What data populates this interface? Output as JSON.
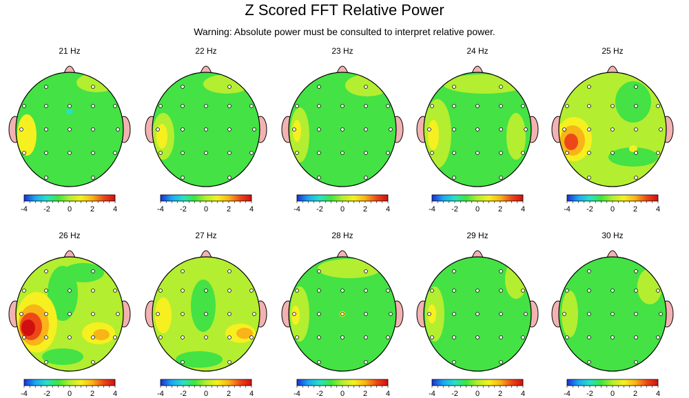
{
  "title": "Z Scored FFT Relative Power",
  "subtitle": "Warning:  Absolute power must be consulted to interpret relative power.",
  "chart_data": {
    "type": "heatmap",
    "description_units": "z-score",
    "color_scale": {
      "range": [
        -4,
        4
      ],
      "ticks": [
        "-4",
        "-2",
        "0",
        "2",
        "4"
      ],
      "colors": [
        "#1a2fd8",
        "#1ca9f0",
        "#28e0c8",
        "#3ee63e",
        "#b4ee30",
        "#f6f020",
        "#f8b418",
        "#ee4818",
        "#d01010"
      ]
    },
    "colors": {
      "background": "#44e244",
      "outline": "#000000",
      "ear_fill": "#f3b2b2",
      "electrode_fill": "#ffffff"
    },
    "maps": [
      {
        "label": "21 Hz"
      },
      {
        "label": "22 Hz"
      },
      {
        "label": "23 Hz"
      },
      {
        "label": "24 Hz"
      },
      {
        "label": "25 Hz"
      },
      {
        "label": "26 Hz"
      },
      {
        "label": "27 Hz"
      },
      {
        "label": "28 Hz"
      },
      {
        "label": "29 Hz"
      },
      {
        "label": "30 Hz"
      }
    ]
  }
}
